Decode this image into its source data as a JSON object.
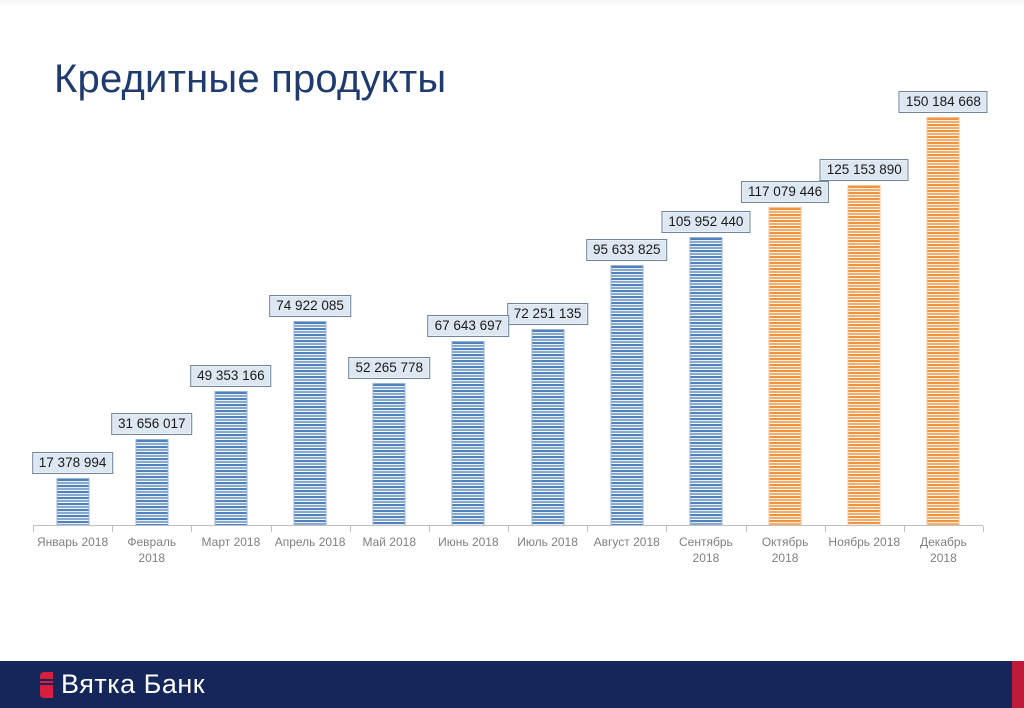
{
  "title": "Кредитные продукты",
  "chart_data": {
    "type": "bar",
    "title": "Кредитные продукты",
    "xlabel": "",
    "ylabel": "",
    "ylim": [
      0,
      150184668
    ],
    "grid": false,
    "legend": "none",
    "categories": [
      "Январь 2018",
      "Февраль 2018",
      "Март 2018",
      "Апрель 2018",
      "Май 2018",
      "Июнь 2018",
      "Июль 2018",
      "Август 2018",
      "Сентябрь 2018",
      "Октябрь 2018",
      "Ноябрь 2018",
      "Декабрь 2018"
    ],
    "tick_labels": [
      "Январь 2018",
      "Февраль\n2018",
      "Март 2018",
      "Апрель 2018",
      "Май 2018",
      "Июнь 2018",
      "Июль 2018",
      "Август 2018",
      "Сентябрь\n2018",
      "Октябрь\n2018",
      "Ноябрь 2018",
      "Декабрь\n2018"
    ],
    "values": [
      17378994,
      31656017,
      49353166,
      74922085,
      52265778,
      67643697,
      72251135,
      95633825,
      105952440,
      117079446,
      125153890,
      150184668
    ],
    "value_labels": [
      "17 378 994",
      "31 656 017",
      "49 353 166",
      "74 922 085",
      "52 265 778",
      "67 643 697",
      "72 251 135",
      "95 633 825",
      "105 952 440",
      "117 079 446",
      "125 153 890",
      "150 184 668"
    ],
    "bar_series": [
      "blue",
      "blue",
      "blue",
      "blue",
      "blue",
      "blue",
      "blue",
      "blue",
      "blue",
      "orange",
      "orange",
      "orange"
    ],
    "palette": {
      "blue": {
        "base": "#4f81bd",
        "light": "#e4edf6",
        "mid": "#87a9cf",
        "pale": "#f2f7fb",
        "border": "#95b3d7"
      },
      "orange": {
        "base": "#ee9440",
        "light": "#fdeedd",
        "mid": "#f4ad69",
        "pale": "#fef6ee",
        "border": "#fac090"
      }
    },
    "axis_color": "#c0c0c0",
    "tick_label_color": "#7f7f7f"
  },
  "title_color": "#1f3a6e",
  "footer": {
    "bank_name": "Вятка Банк",
    "navy": "#15265b",
    "red_accent": "#c01a3a",
    "logo_red": "#d81f3d"
  }
}
